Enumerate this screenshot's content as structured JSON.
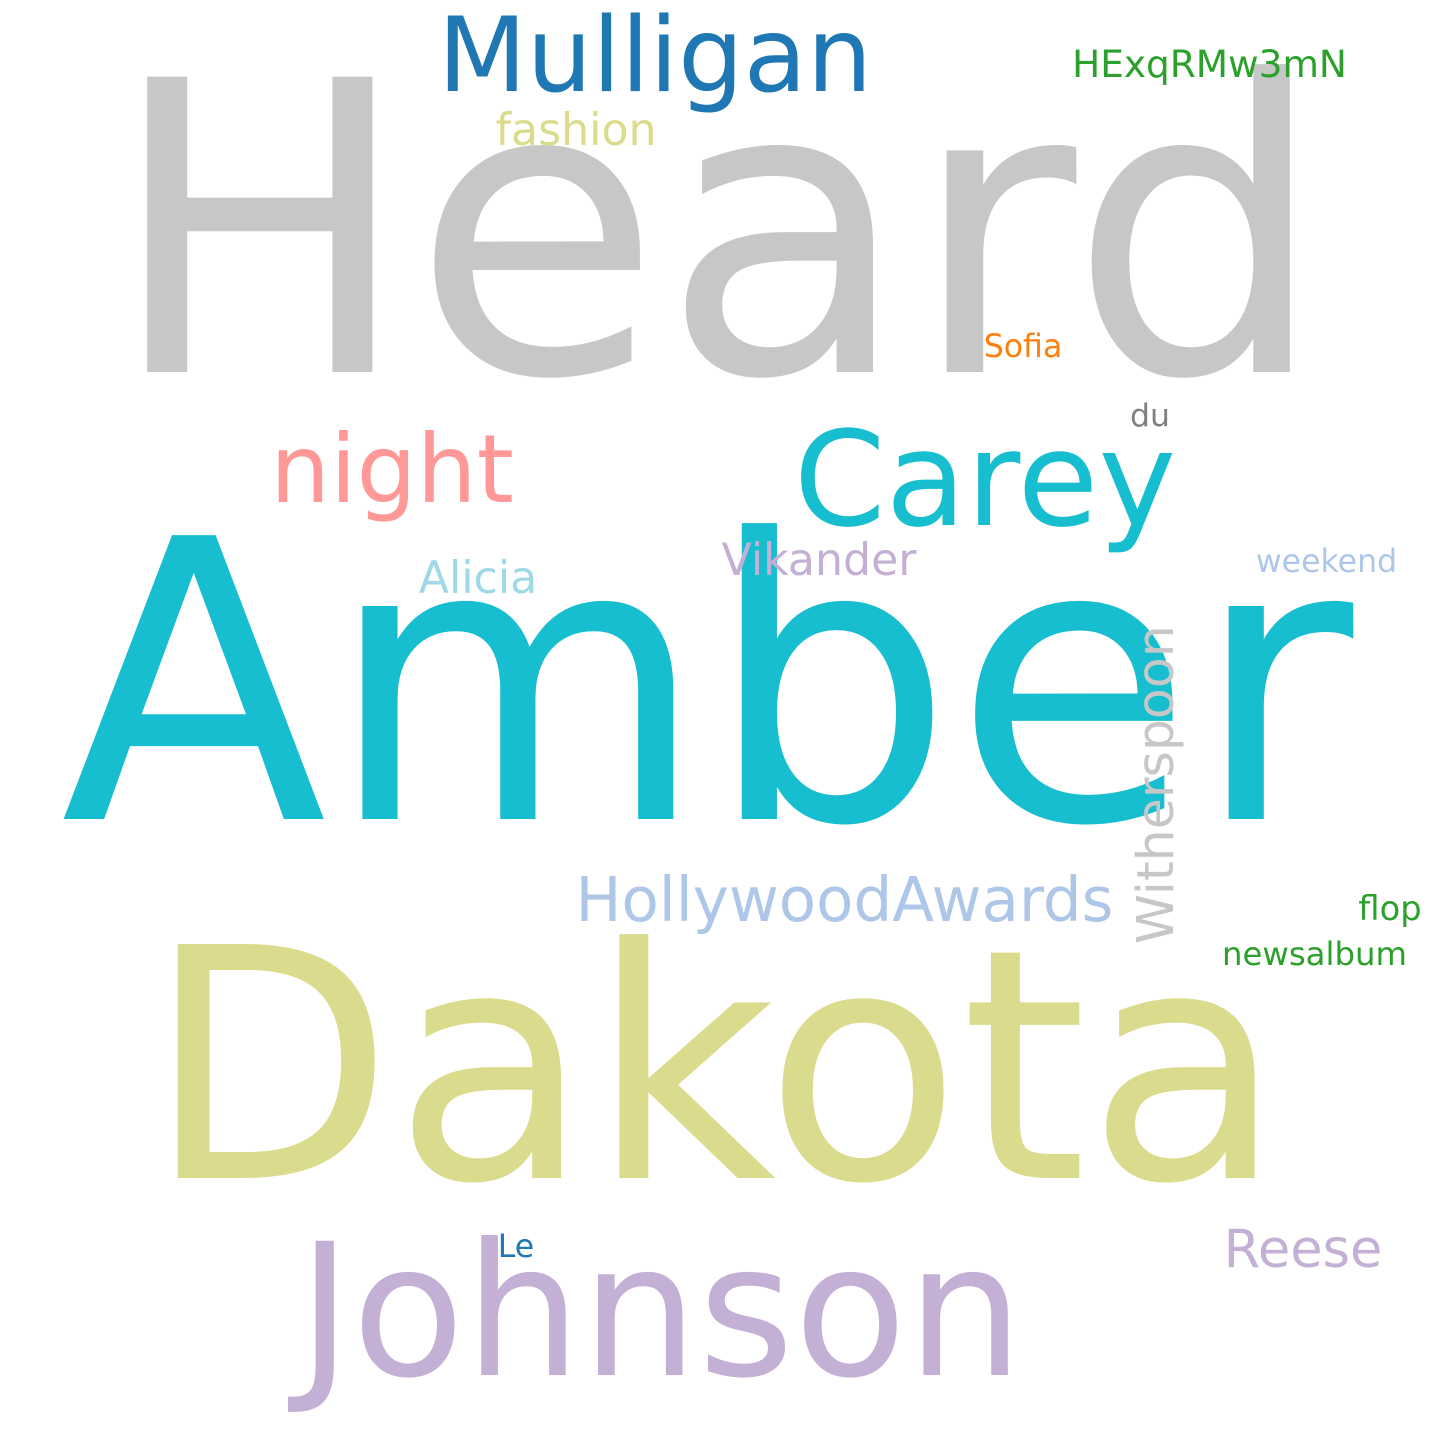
{
  "words": [
    {
      "key": "heard",
      "text": "Heard",
      "color": "#c7c7c7"
    },
    {
      "key": "amber",
      "text": "Amber",
      "color": "#17becf"
    },
    {
      "key": "dakota",
      "text": "Dakota",
      "color": "#dbdb8d"
    },
    {
      "key": "johnson",
      "text": "Johnson",
      "color": "#c5b0d5"
    },
    {
      "key": "mulligan",
      "text": "Mulligan",
      "color": "#1f77b4"
    },
    {
      "key": "carey",
      "text": "Carey",
      "color": "#17becf"
    },
    {
      "key": "night",
      "text": "night",
      "color": "#ff9896"
    },
    {
      "key": "witherspoon",
      "text": "Witherspoon",
      "color": "#c7c7c7"
    },
    {
      "key": "hollywoodawards",
      "text": "HollywoodAwards",
      "color": "#aec7e8"
    },
    {
      "key": "reese",
      "text": "Reese",
      "color": "#c5b0d5"
    },
    {
      "key": "hexqrmw3mn",
      "text": "HExqRMw3mN",
      "color": "#2ca02c"
    },
    {
      "key": "fashion",
      "text": "fashion",
      "color": "#dbdb8d"
    },
    {
      "key": "vikander",
      "text": "Vikander",
      "color": "#c5b0d5"
    },
    {
      "key": "alicia",
      "text": "Alicia",
      "color": "#9edae5"
    },
    {
      "key": "sofia",
      "text": "Sofia",
      "color": "#ff7f0e"
    },
    {
      "key": "weekend",
      "text": "weekend",
      "color": "#aec7e8"
    },
    {
      "key": "du",
      "text": "du",
      "color": "#7f7f7f"
    },
    {
      "key": "flop",
      "text": "flop",
      "color": "#2ca02c"
    },
    {
      "key": "newsalbum",
      "text": "newsalbum",
      "color": "#2ca02c"
    },
    {
      "key": "le",
      "text": "Le",
      "color": "#1f77b4"
    }
  ]
}
